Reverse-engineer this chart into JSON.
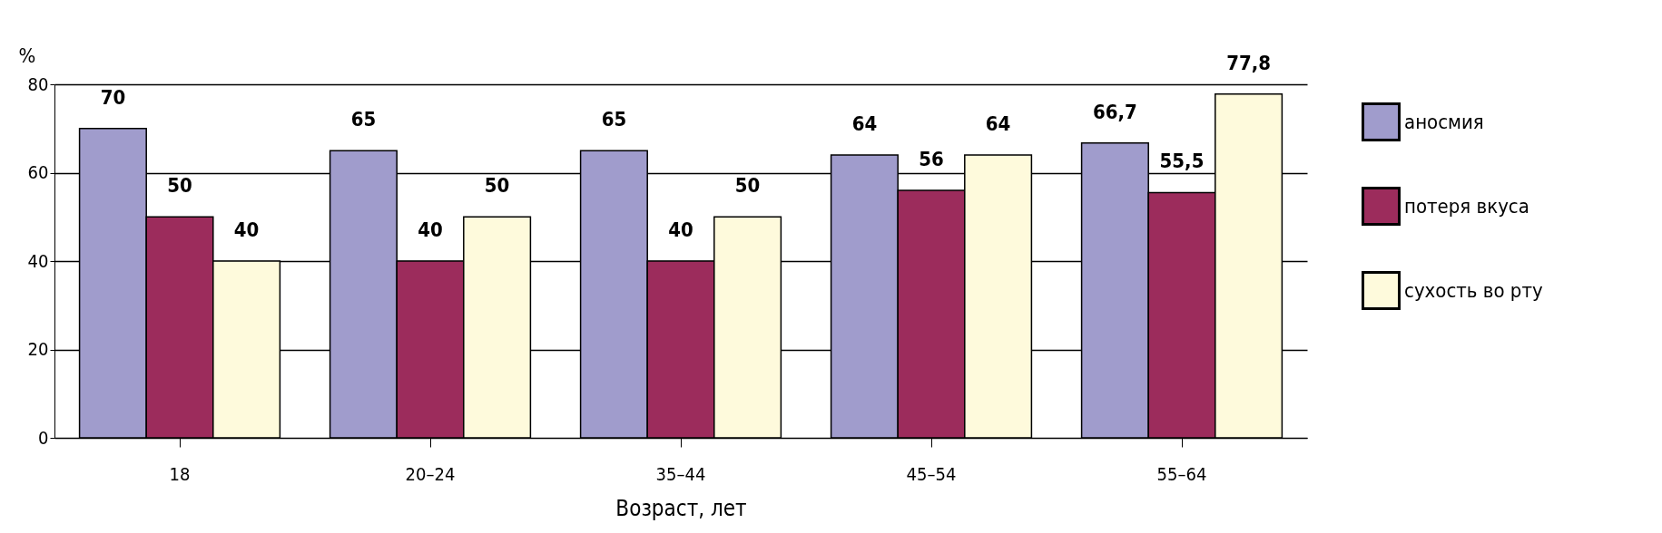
{
  "chart_data": {
    "type": "bar",
    "xlabel": "Возраст, лет",
    "ylabel": "%",
    "categories": [
      "18",
      "20–24",
      "35–44",
      "45–54",
      "55–64"
    ],
    "series": [
      {
        "name": "аносмия",
        "color": "#a09ccc",
        "values": [
          70,
          65,
          65,
          64,
          66.7
        ],
        "value_labels": [
          "70",
          "65",
          "65",
          "64",
          "66,7"
        ]
      },
      {
        "name": "потеря вкуса",
        "color": "#9c2c5c",
        "values": [
          50,
          40,
          40,
          56,
          55.5
        ],
        "value_labels": [
          "50",
          "40",
          "40",
          "56",
          "55,5"
        ]
      },
      {
        "name": "сухость во рту",
        "color": "#fefadc",
        "values": [
          40,
          50,
          50,
          64,
          77.8
        ],
        "value_labels": [
          "40",
          "50",
          "50",
          "64",
          "77,8"
        ]
      }
    ],
    "ylim": [
      0,
      80
    ],
    "yticks": [
      0,
      20,
      40,
      60,
      80
    ],
    "grid": "y",
    "legend": "right"
  }
}
